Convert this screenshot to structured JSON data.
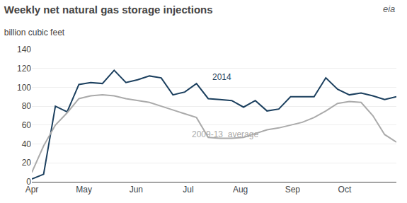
{
  "chart_data": {
    "type": "line",
    "title": "Weekly net natural gas storage injections",
    "subtitle": "billion cubic feet",
    "x": [
      0,
      1,
      2,
      3,
      4,
      5,
      6,
      7,
      8,
      9,
      10,
      11,
      12,
      13,
      14,
      15,
      16,
      17,
      18,
      19,
      20,
      21,
      22,
      23,
      24,
      25,
      26,
      27,
      28,
      29,
      30,
      31
    ],
    "series": [
      {
        "color": "#1b3f5e",
        "values": [
          3,
          8,
          80,
          74,
          103,
          105,
          104,
          118,
          105,
          108,
          112,
          110,
          92,
          95,
          104,
          88,
          87,
          86,
          79,
          86,
          75,
          77,
          90,
          90,
          90,
          110,
          98,
          92,
          94,
          91,
          87,
          90
        ]
      },
      {
        "color": "#aaaaaa",
        "values": [
          10,
          38,
          60,
          73,
          88,
          91,
          92,
          91,
          88,
          86,
          84,
          80,
          76,
          72,
          68,
          47,
          46,
          46,
          47,
          51,
          55,
          57,
          60,
          63,
          68,
          75,
          83,
          85,
          84,
          70,
          50,
          42
        ]
      }
    ],
    "annotations": [
      {
        "text": "2014",
        "x": 15.2,
        "y": 104,
        "color": "#1b3f5e"
      },
      {
        "text": "2009-13  average",
        "x": 13.5,
        "y": 57,
        "color": "#aaaaaa"
      },
      {
        "text": "eia",
        "color": "#666666"
      }
    ],
    "xlim": [
      0,
      31
    ],
    "xticks": [
      {
        "value": 0,
        "label": "Apr"
      },
      {
        "value": 4.43,
        "label": "May"
      },
      {
        "value": 8.87,
        "label": "Jun"
      },
      {
        "value": 13.3,
        "label": "Jul"
      },
      {
        "value": 17.73,
        "label": "Aug"
      },
      {
        "value": 22.17,
        "label": "Sep"
      },
      {
        "value": 26.6,
        "label": "Oct"
      }
    ],
    "ylim": [
      0,
      140
    ],
    "yticks": [
      0,
      20,
      40,
      60,
      80,
      100,
      120,
      140
    ],
    "grid": true
  }
}
